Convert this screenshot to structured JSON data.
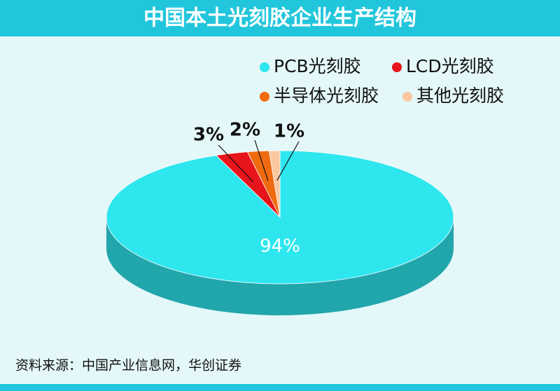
{
  "chart_data": {
    "type": "pie3d",
    "title": "中国本土光刻胶企业生产结构",
    "categories": [
      "PCB光刻胶",
      "LCD光刻胶",
      "半导体光刻胶",
      "其他光刻胶"
    ],
    "values": [
      94,
      3,
      2,
      1
    ],
    "value_labels": [
      "94%",
      "3%",
      "2%",
      "1%"
    ],
    "colors": [
      "#2ee6ee",
      "#e8141c",
      "#f06a10",
      "#f9c8a0"
    ],
    "legend": "top-right",
    "source": "资料来源：中国产业信息网，华创证券"
  }
}
